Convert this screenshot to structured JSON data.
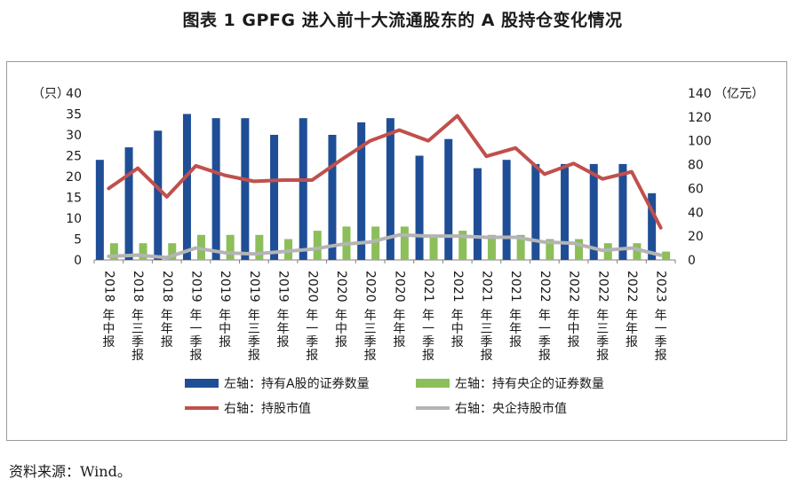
{
  "title": "图表 1  GPFG 进入前十大流通股东的 A 股持仓变化情况",
  "source": "资料来源：Wind。",
  "colors": {
    "a_count": "#1f4e96",
    "soe_count": "#8cbe5a",
    "holding_value": "#c0504d",
    "soe_value": "#b4b4b4"
  },
  "chart_data": {
    "type": "bar",
    "title": "",
    "categories": [
      "2018年中报",
      "2018年三季报",
      "2018年年报",
      "2019年一季报",
      "2019年中报",
      "2019年三季报",
      "2019年年报",
      "2020年一季报",
      "2020年中报",
      "2020年三季报",
      "2020年年报",
      "2021年一季报",
      "2021年中报",
      "2021年三季报",
      "2021年年报",
      "2022年一季报",
      "2022年中报",
      "2022年三季报",
      "2022年年报",
      "2023年一季报"
    ],
    "left_axis": {
      "unit_label": "（只）",
      "ylim": [
        0,
        40
      ],
      "ticks": [
        0,
        5,
        10,
        15,
        20,
        25,
        30,
        35,
        40
      ]
    },
    "right_axis": {
      "unit_label": "（亿元）",
      "ylim": [
        0,
        140
      ],
      "ticks": [
        0,
        20,
        40,
        60,
        80,
        100,
        120,
        140
      ]
    },
    "series": [
      {
        "name": "左轴：持有A股的证券数量",
        "type": "bar",
        "axis": "left",
        "values": [
          24,
          27,
          31,
          35,
          34,
          34,
          30,
          34,
          30,
          33,
          34,
          25,
          29,
          22,
          24,
          23,
          23,
          23,
          23,
          16
        ]
      },
      {
        "name": "左轴：持有央企的证券数量",
        "type": "bar",
        "axis": "left",
        "values": [
          4,
          4,
          4,
          6,
          6,
          6,
          5,
          7,
          8,
          8,
          8,
          6,
          7,
          6,
          6,
          5,
          5,
          4,
          4,
          2
        ]
      },
      {
        "name": "右轴：持股市值",
        "type": "line",
        "axis": "right",
        "values": [
          60,
          77,
          53,
          79,
          71,
          66,
          67,
          67,
          84,
          100,
          109,
          100,
          121,
          87,
          94,
          72,
          81,
          68,
          74,
          27
        ]
      },
      {
        "name": "右轴：央企持股市值",
        "type": "line",
        "axis": "right",
        "values": [
          3,
          4,
          2,
          10,
          6,
          5,
          7,
          9,
          13,
          15,
          21,
          20,
          20,
          19,
          19,
          15,
          14,
          8,
          10,
          4
        ]
      }
    ],
    "grid": false,
    "legend_position": "bottom"
  }
}
